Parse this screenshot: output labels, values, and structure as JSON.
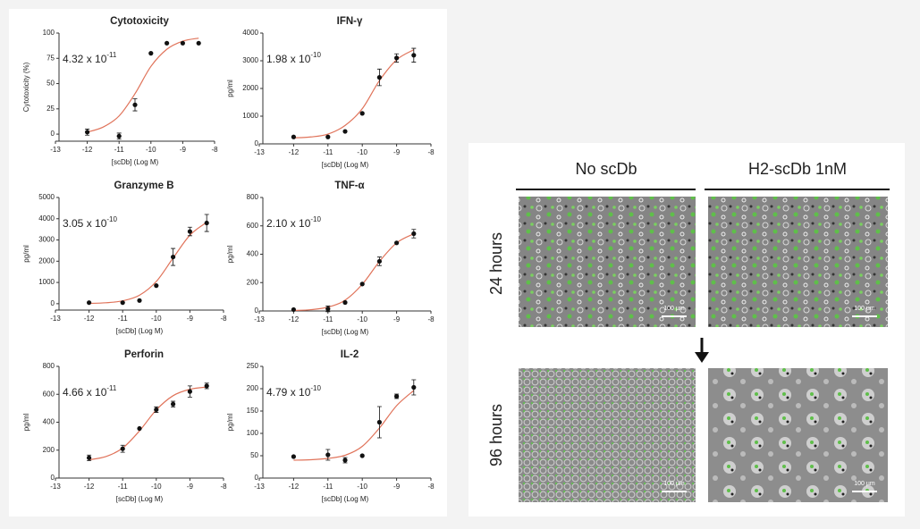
{
  "chart_data": [
    {
      "type": "dose_response",
      "title": "Cytotoxicity",
      "y_label": "Cytotoxicity (%)",
      "x_label": "[scDb] (Log M)",
      "annotation": {
        "text": "4.32 x 10",
        "exponent": "-11"
      },
      "xlim": [
        -13,
        -8
      ],
      "xticks": [
        -13,
        -12,
        -11,
        -10,
        -9,
        -8
      ],
      "ylim": [
        -7,
        100
      ],
      "yticks": [
        0,
        25,
        50,
        75,
        100
      ],
      "points": {
        "color": "#111111",
        "x": [
          -12,
          -11,
          -10.5,
          -10,
          -9.5,
          -9,
          -8.5
        ],
        "values": [
          2,
          -2,
          29,
          80,
          90,
          90,
          90
        ],
        "errors": [
          3,
          3,
          6,
          null,
          null,
          null,
          null
        ]
      },
      "fit": {
        "color": "#e0735a",
        "x": [
          -12,
          -11.5,
          -11,
          -10.5,
          -10,
          -9.5,
          -9,
          -8.5
        ],
        "values": [
          2,
          7,
          18,
          40,
          67,
          84,
          92,
          95
        ]
      }
    },
    {
      "type": "dose_response",
      "title": "IFN-γ",
      "y_label": "pg/ml",
      "x_label": "[scDb] (Log M)",
      "annotation": {
        "text": "1.98 x 10",
        "exponent": "-10"
      },
      "xlim": [
        -13,
        -8
      ],
      "xticks": [
        -13,
        -12,
        -11,
        -10,
        -9,
        -8
      ],
      "ylim": [
        0,
        4000
      ],
      "yticks": [
        0,
        1000,
        2000,
        3000,
        4000
      ],
      "points": {
        "color": "#111111",
        "x": [
          -12,
          -11,
          -10.5,
          -10,
          -9.5,
          -9,
          -8.5
        ],
        "values": [
          250,
          250,
          450,
          1100,
          2400,
          3100,
          3200
        ],
        "errors": [
          null,
          null,
          null,
          null,
          300,
          150,
          250
        ]
      },
      "fit": {
        "color": "#e0735a",
        "x": [
          -12,
          -11.5,
          -11,
          -10.5,
          -10,
          -9.5,
          -9,
          -8.5
        ],
        "values": [
          216,
          250,
          354,
          666,
          1269,
          2284,
          3036,
          3399
        ]
      }
    },
    {
      "type": "dose_response",
      "title": "Granzyme B",
      "y_label": "pg/ml",
      "x_label": "[scDb] (Log M)",
      "annotation": {
        "text": "3.05 x 10",
        "exponent": "-10"
      },
      "xlim": [
        -13,
        -8
      ],
      "xticks": [
        -13,
        -12,
        -11,
        -10,
        -9,
        -8
      ],
      "ylim": [
        -300,
        5000
      ],
      "yticks": [
        0,
        1000,
        2000,
        3000,
        4000,
        5000
      ],
      "points": {
        "color": "#111111",
        "x": [
          -12,
          -11,
          -10.5,
          -10,
          -9.5,
          -9,
          -8.5
        ],
        "values": [
          50,
          50,
          150,
          850,
          2200,
          3400,
          3800
        ],
        "errors": [
          null,
          null,
          null,
          null,
          400,
          200,
          400
        ]
      },
      "fit": {
        "color": "#e0735a",
        "x": [
          -12,
          -11.5,
          -11,
          -10.5,
          -10,
          -9.5,
          -9,
          -8.5
        ],
        "values": [
          14,
          44,
          134,
          399,
          1046,
          2150,
          3226,
          3835
        ]
      }
    },
    {
      "type": "dose_response",
      "title": "TNF-α",
      "y_label": "pg/ml",
      "x_label": "[scDb] (Log M)",
      "annotation": {
        "text": "2.10 x 10",
        "exponent": "-10"
      },
      "xlim": [
        -13,
        -8
      ],
      "xticks": [
        -13,
        -12,
        -11,
        -10,
        -9,
        -8
      ],
      "ylim": [
        0,
        800
      ],
      "yticks": [
        0,
        200,
        400,
        600,
        800
      ],
      "points": {
        "color": "#111111",
        "x": [
          -12,
          -11,
          -10.5,
          -10,
          -9.5,
          -9,
          -8.5
        ],
        "values": [
          10,
          15,
          60,
          190,
          350,
          480,
          545
        ],
        "errors": [
          null,
          20,
          null,
          null,
          30,
          null,
          30
        ]
      },
      "fit": {
        "color": "#e0735a",
        "x": [
          -12,
          -11.5,
          -11,
          -10.5,
          -10,
          -9.5,
          -9,
          -8.5
        ],
        "values": [
          3,
          9,
          27,
          76,
          188,
          349,
          480,
          544
        ]
      }
    },
    {
      "type": "dose_response",
      "title": "Perforin",
      "y_label": "pg/ml",
      "x_label": "[scDb] (Log M)",
      "annotation": {
        "text": "4.66 x 10",
        "exponent": "-11"
      },
      "xlim": [
        -13,
        -8
      ],
      "xticks": [
        -13,
        -12,
        -11,
        -10,
        -9,
        -8
      ],
      "ylim": [
        0,
        800
      ],
      "yticks": [
        0,
        200,
        400,
        600,
        800
      ],
      "points": {
        "color": "#111111",
        "x": [
          -12,
          -11,
          -10.5,
          -10,
          -9.5,
          -9,
          -8.5
        ],
        "values": [
          145,
          210,
          355,
          490,
          530,
          620,
          660
        ],
        "errors": [
          20,
          25,
          null,
          20,
          20,
          40,
          20
        ]
      },
      "fit": {
        "color": "#e0735a",
        "x": [
          -12,
          -11.5,
          -11,
          -10.5,
          -10,
          -9.5,
          -9,
          -8.5
        ],
        "values": [
          131,
          154,
          215,
          338,
          488,
          590,
          636,
          652
        ]
      }
    },
    {
      "type": "dose_response",
      "title": "IL-2",
      "y_label": "pg/ml",
      "x_label": "[scDb] (Log M)",
      "annotation": {
        "text": "4.79 x 10",
        "exponent": "-10"
      },
      "xlim": [
        -13,
        -8
      ],
      "xticks": [
        -13,
        -12,
        -11,
        -10,
        -9,
        -8
      ],
      "ylim": [
        0,
        250
      ],
      "yticks": [
        0,
        50,
        100,
        150,
        200,
        250
      ],
      "points": {
        "color": "#111111",
        "x": [
          -12,
          -11,
          -10.5,
          -10,
          -9.5,
          -9,
          -8.5
        ],
        "values": [
          48,
          52,
          40,
          50,
          125,
          183,
          203
        ],
        "errors": [
          null,
          12,
          6,
          null,
          35,
          5,
          17
        ]
      },
      "fit": {
        "color": "#e0735a",
        "x": [
          -12,
          -11.5,
          -11,
          -10.5,
          -10,
          -9.5,
          -9,
          -8.5
        ],
        "values": [
          40,
          41,
          44,
          51,
          71,
          112,
          162,
          196
        ]
      }
    }
  ],
  "micrograph": {
    "columns": [
      "No scDb",
      "H2-scDb 1nM"
    ],
    "rows": [
      "24 hours",
      "96 hours"
    ],
    "scale_bar": "100 µm"
  }
}
